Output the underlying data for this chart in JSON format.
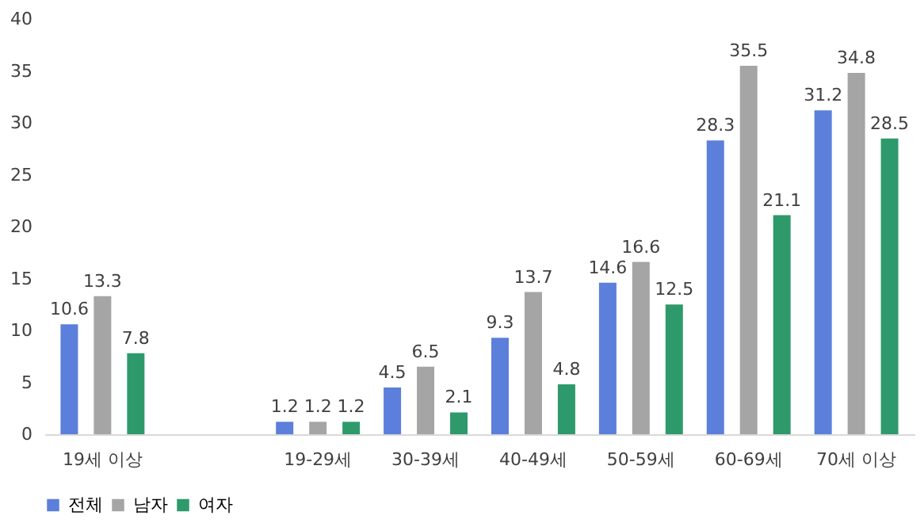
{
  "chart_data": {
    "type": "bar",
    "categories": [
      "19세 이상",
      null,
      "19-29세",
      "30-39세",
      "40-49세",
      "50-59세",
      "60-69세",
      "70세 이상"
    ],
    "series": [
      {
        "name": "전체",
        "color": "#5b7fdb",
        "values": [
          10.6,
          null,
          1.2,
          4.5,
          9.3,
          14.6,
          28.3,
          31.2
        ]
      },
      {
        "name": "남자",
        "color": "#a5a5a5",
        "values": [
          13.3,
          null,
          1.2,
          6.5,
          13.7,
          16.6,
          35.5,
          34.8
        ]
      },
      {
        "name": "여자",
        "color": "#2e9a6b",
        "values": [
          7.8,
          null,
          1.2,
          2.1,
          4.8,
          12.5,
          21.1,
          28.5
        ]
      }
    ],
    "ylim": [
      0,
      40
    ],
    "yticks": [
      0,
      5,
      10,
      15,
      20,
      25,
      30,
      35,
      40
    ],
    "grid": false,
    "legend": "bottom",
    "data_labels": true
  }
}
